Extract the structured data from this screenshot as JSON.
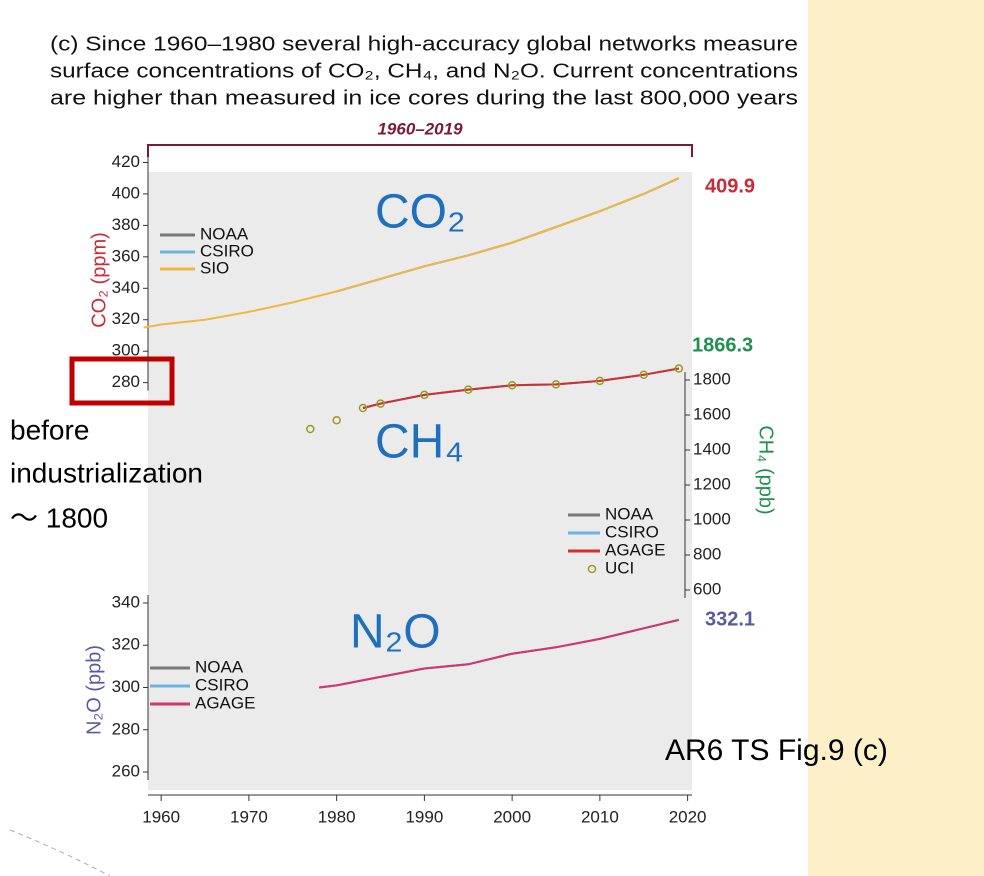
{
  "header": {
    "title_lines": [
      "(c) Since 1960–1980 several high-accuracy global networks measure",
      "surface concentrations of CO₂, CH₄, and N₂O. Current concentrations",
      "are higher than measured in ice cores during the last 800,000 years"
    ],
    "period": "1960–2019"
  },
  "annotations": {
    "co2": "CO₂",
    "ch4": "CH₄",
    "n2o": "N₂O",
    "note_lines": [
      "before",
      "industrialization",
      "～ 1800"
    ],
    "source": "AR6 TS Fig.9 (c)"
  },
  "chart_data": [
    {
      "type": "line",
      "ylabel": "CO₂ (ppm)",
      "ylabel_color": "#cc2a36",
      "axis_side": "left",
      "end_value": 409.9,
      "end_color": "#cc2a36",
      "x": [
        1958,
        1960,
        1965,
        1970,
        1975,
        1980,
        1985,
        1990,
        1995,
        2000,
        2005,
        2010,
        2015,
        2019
      ],
      "series": [
        {
          "name": "NOAA",
          "color": "#777777",
          "values": [
            null,
            null,
            null,
            null,
            null,
            338,
            346,
            354,
            361,
            369,
            379,
            389,
            400,
            410
          ]
        },
        {
          "name": "CSIRO",
          "color": "#6ab4e0",
          "values": [
            null,
            null,
            null,
            null,
            null,
            338,
            346,
            354,
            361,
            369,
            379,
            389,
            400,
            410
          ]
        },
        {
          "name": "SIO",
          "color": "#f0b840",
          "values": [
            315,
            317,
            320,
            325,
            331,
            338,
            346,
            354,
            361,
            369,
            379,
            389,
            400,
            410
          ]
        }
      ],
      "xlim": [
        1958.5,
        2020.5
      ],
      "ylim": [
        275,
        420
      ],
      "yticks": [
        280,
        300,
        320,
        340,
        360,
        380,
        400,
        420
      ]
    },
    {
      "type": "line",
      "ylabel": "CH₄ (ppb)",
      "ylabel_color": "#1f9050",
      "axis_side": "right",
      "end_value": 1866.3,
      "end_color": "#1f9050",
      "x": [
        1977,
        1980,
        1983,
        1985,
        1990,
        1995,
        2000,
        2005,
        2010,
        2015,
        2019
      ],
      "series": [
        {
          "name": "NOAA",
          "color": "#777777",
          "values": [
            null,
            null,
            1640,
            1665,
            1715,
            1745,
            1770,
            1775,
            1795,
            1830,
            1866
          ]
        },
        {
          "name": "CSIRO",
          "color": "#6ab4e0",
          "values": [
            null,
            null,
            1640,
            1665,
            1715,
            1745,
            1770,
            1775,
            1795,
            1830,
            1866
          ]
        },
        {
          "name": "AGAGE",
          "color": "#d03030",
          "values": [
            null,
            null,
            1640,
            1665,
            1715,
            1745,
            1770,
            1775,
            1795,
            1830,
            1866
          ]
        },
        {
          "name": "UCI",
          "color": "#9a9a20",
          "style": "markers",
          "values": [
            1520,
            1570,
            1640,
            1665,
            1715,
            1745,
            1770,
            1775,
            1795,
            1830,
            1866
          ]
        }
      ],
      "xlim": [
        1958.5,
        2020.5
      ],
      "ylim": [
        550,
        1900
      ],
      "yticks": [
        600,
        800,
        1000,
        1200,
        1400,
        1600,
        1800
      ]
    },
    {
      "type": "line",
      "ylabel": "N₂O (ppb)",
      "ylabel_color": "#5a5aa0",
      "axis_side": "left",
      "end_value": 332.1,
      "end_color": "#5a5aa0",
      "x": [
        1978,
        1980,
        1985,
        1990,
        1995,
        2000,
        2005,
        2010,
        2015,
        2019
      ],
      "series": [
        {
          "name": "NOAA",
          "color": "#777777",
          "values": [
            300,
            301,
            305,
            309,
            311,
            316,
            319,
            323,
            328,
            332
          ]
        },
        {
          "name": "CSIRO",
          "color": "#6ab4e0",
          "values": [
            300,
            301,
            305,
            309,
            311,
            316,
            319,
            323,
            328,
            332
          ]
        },
        {
          "name": "AGAGE",
          "color": "#d6336c",
          "values": [
            300,
            301,
            305,
            309,
            311,
            316,
            319,
            323,
            328,
            332
          ]
        }
      ],
      "xlim": [
        1958.5,
        2020.5
      ],
      "ylim": [
        255,
        345
      ],
      "yticks": [
        260,
        280,
        300,
        320,
        340
      ],
      "xticks": [
        1960,
        1970,
        1980,
        1990,
        2000,
        2010,
        2020
      ]
    }
  ]
}
